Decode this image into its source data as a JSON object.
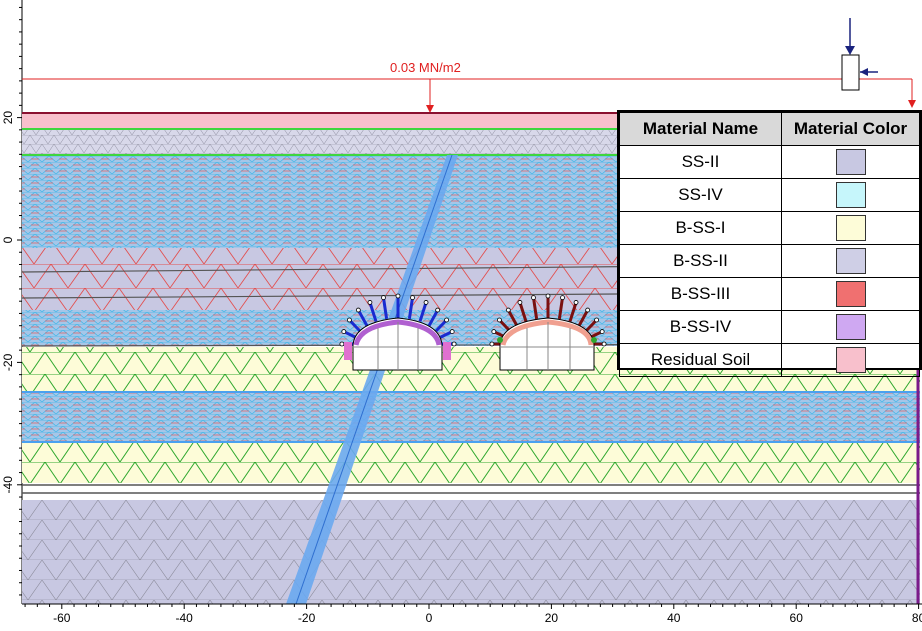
{
  "load_label": "0.03 MN/m2",
  "x_ticks": [
    "-60",
    "-40",
    "-20",
    "0",
    "20",
    "40",
    "60",
    "80"
  ],
  "y_ticks": [
    "20",
    "0",
    "-20",
    "-40"
  ],
  "legend": {
    "header_name": "Material Name",
    "header_color": "Material Color",
    "rows": [
      {
        "name": "SS-II",
        "color": "#c8c8e2"
      },
      {
        "name": "SS-IV",
        "color": "#c6f6fb"
      },
      {
        "name": "B-SS-I",
        "color": "#fdfcd8"
      },
      {
        "name": "B-SS-II",
        "color": "#cfcfe6"
      },
      {
        "name": "B-SS-III",
        "color": "#f07070"
      },
      {
        "name": "B-SS-IV",
        "color": "#cfa8f2"
      },
      {
        "name": "Residual Soil",
        "color": "#f8c0cc"
      }
    ]
  },
  "colors": {
    "ss_ii": "#c8c8e2",
    "ss_iv": "#c6f6fb",
    "b_ss_i": "#fdfcd8",
    "b_ss_iii": "#f07070",
    "residual": "#f8c0cc",
    "load_red": "#e02020",
    "bolt_blue": "#1a2bd0",
    "bolt_darkred": "#7a1010",
    "fault_blue": "#6aa8f0"
  }
}
